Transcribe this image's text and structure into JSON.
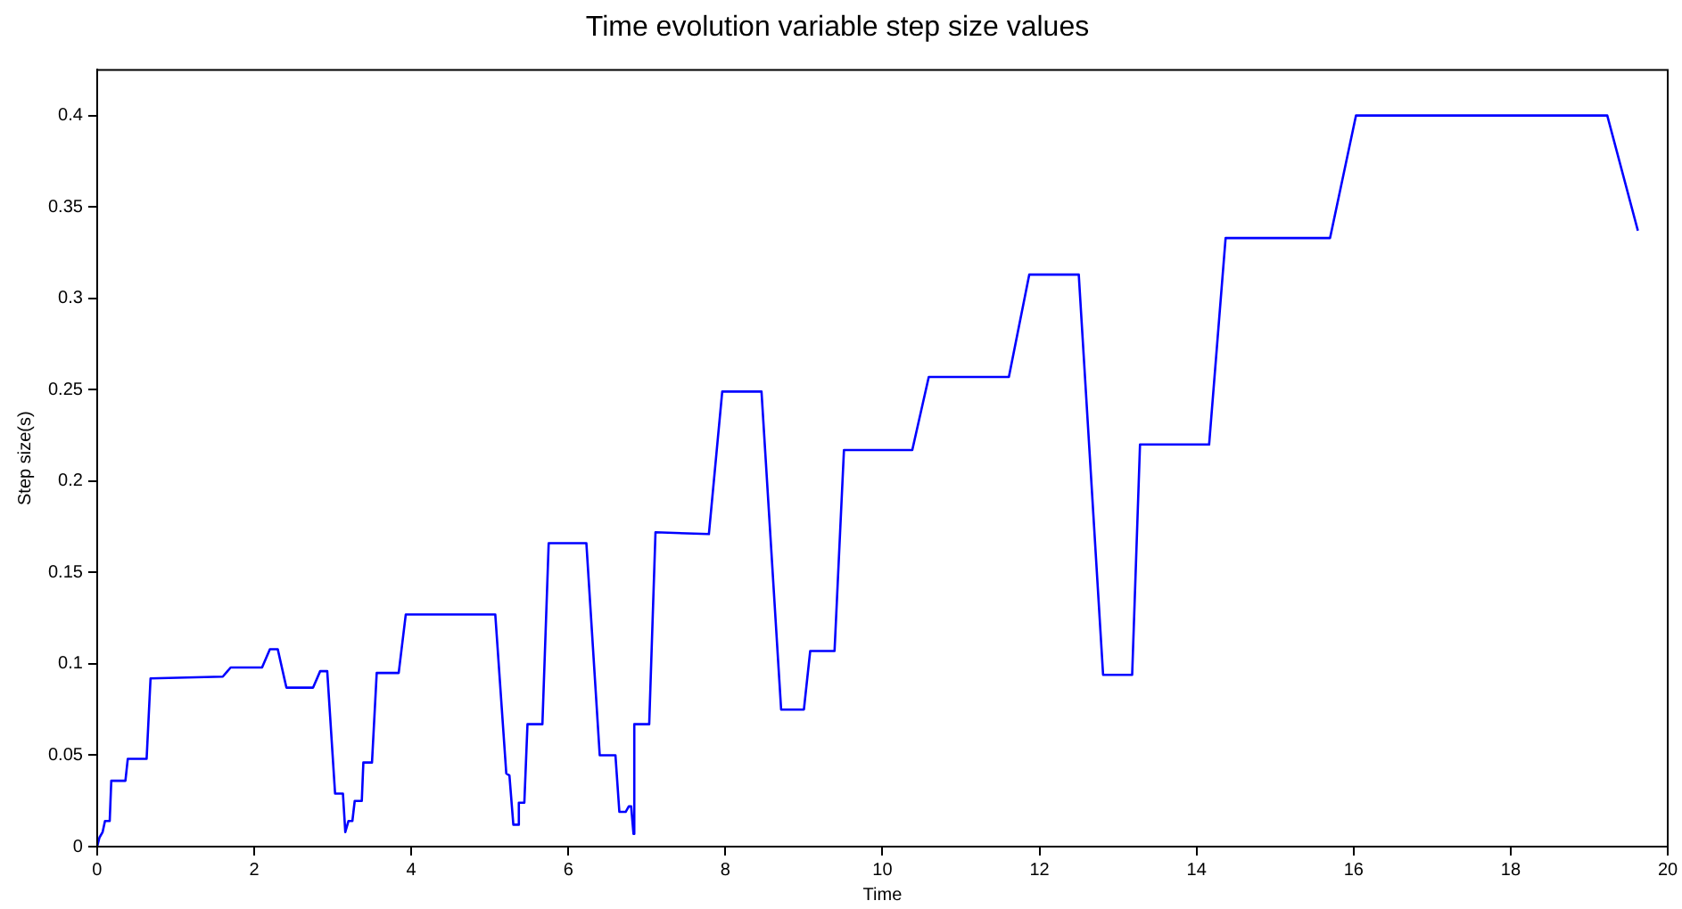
{
  "chart_data": {
    "type": "line",
    "title": "Time evolution variable step size values",
    "xlabel": "Time",
    "ylabel": "Step size(s)",
    "xlim": [
      0,
      20
    ],
    "xticks": [
      0,
      2,
      4,
      6,
      8,
      10,
      12,
      14,
      16,
      18,
      20
    ],
    "ylim": [
      0,
      0.425
    ],
    "yticks": [
      0,
      0.05,
      0.1,
      0.15,
      0.2,
      0.25,
      0.3,
      0.35,
      0.4
    ],
    "x": [
      0,
      0.03,
      0.07,
      0.1,
      0.16,
      0.18,
      0.36,
      0.39,
      0.63,
      0.68,
      1.6,
      1.7,
      2.1,
      2.2,
      2.3,
      2.41,
      2.75,
      2.84,
      2.93,
      3.03,
      3.13,
      3.16,
      3.2,
      3.25,
      3.28,
      3.37,
      3.39,
      3.5,
      3.56,
      3.84,
      3.93,
      5.07,
      5.21,
      5.25,
      5.3,
      5.35,
      5.37,
      5.44,
      5.48,
      5.67,
      5.75,
      6.23,
      6.4,
      6.6,
      6.65,
      6.73,
      6.77,
      6.8,
      6.83,
      6.84,
      7.03,
      7.11,
      7.79,
      7.96,
      8.46,
      8.71,
      9.0,
      9.08,
      9.39,
      9.51,
      10.38,
      10.59,
      11.61,
      11.87,
      12.5,
      12.81,
      13.18,
      13.28,
      14.16,
      14.37,
      15.7,
      16.03,
      19.23,
      19.62
    ],
    "series": [
      {
        "color": "#0000ff",
        "values": [
          0,
          0.005,
          0.008,
          0.014,
          0.014,
          0.036,
          0.036,
          0.048,
          0.048,
          0.092,
          0.093,
          0.098,
          0.098,
          0.108,
          0.108,
          0.087,
          0.087,
          0.096,
          0.096,
          0.029,
          0.029,
          0.008,
          0.014,
          0.014,
          0.025,
          0.025,
          0.046,
          0.046,
          0.095,
          0.095,
          0.127,
          0.127,
          0.04,
          0.039,
          0.012,
          0.012,
          0.024,
          0.024,
          0.067,
          0.067,
          0.166,
          0.166,
          0.05,
          0.05,
          0.019,
          0.019,
          0.022,
          0.022,
          0.007,
          0.067,
          0.067,
          0.172,
          0.171,
          0.249,
          0.249,
          0.075,
          0.075,
          0.107,
          0.107,
          0.217,
          0.217,
          0.257,
          0.257,
          0.313,
          0.313,
          0.094,
          0.094,
          0.22,
          0.22,
          0.333,
          0.333,
          0.4,
          0.4,
          0.337
        ]
      }
    ]
  }
}
